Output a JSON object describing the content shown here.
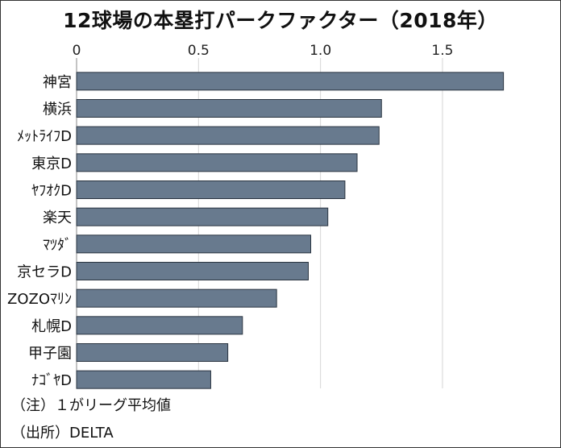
{
  "chart_data": {
    "type": "bar",
    "orientation": "horizontal",
    "title": "12球場の本塁打パークファクター（2018年）",
    "categories": [
      "神宮",
      "横浜",
      "ﾒｯﾄﾗｲﾌD",
      "東京D",
      "ﾔﾌｵｸD",
      "楽天",
      "ﾏﾂﾀﾞ",
      "京セラD",
      "ZOZOﾏﾘﾝ",
      "札幌D",
      "甲子園",
      "ﾅｺﾞﾔD"
    ],
    "values": [
      1.75,
      1.25,
      1.24,
      1.15,
      1.1,
      1.03,
      0.96,
      0.95,
      0.82,
      0.68,
      0.62,
      0.55
    ],
    "xlim": [
      0,
      1.9
    ],
    "xticks": [
      "0",
      "0.5",
      "1.0",
      "1.5"
    ],
    "xtick_values": [
      0,
      0.5,
      1.0,
      1.5
    ],
    "grid": true,
    "bar_color": "#687a8e",
    "grid_color": "#d6d6d6"
  },
  "notes": {
    "note1": "（注）１がリーグ平均値",
    "source": "（出所）DELTA"
  }
}
